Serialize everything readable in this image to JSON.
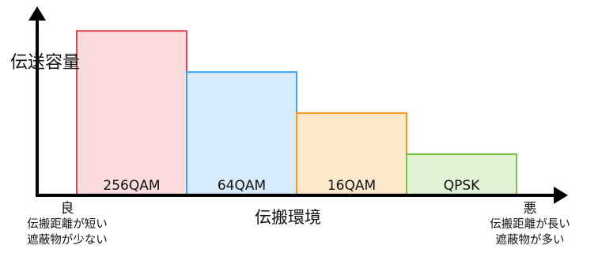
{
  "chart_data": {
    "type": "bar",
    "categories": [
      "256QAM",
      "64QAM",
      "16QAM",
      "QPSK"
    ],
    "values": [
      4,
      3,
      2,
      1
    ],
    "ylim": [
      0,
      4.6
    ],
    "ylabel": "伝送容量",
    "xlabel": "伝搬環境",
    "x_left": {
      "title": "良",
      "lines": [
        "伝搬距離が短い",
        "遮蔽物が少ない"
      ]
    },
    "x_right": {
      "title": "悪",
      "lines": [
        "伝搬距離が長い",
        "遮蔽物が多い"
      ]
    },
    "grid": false,
    "legend": "none",
    "colors": [
      {
        "fill": "#fcdcdc",
        "stroke": "#e8474f"
      },
      {
        "fill": "#d8ebfa",
        "stroke": "#3aa4e8"
      },
      {
        "fill": "#fde8cc",
        "stroke": "#f39a1e"
      },
      {
        "fill": "#e2f2d4",
        "stroke": "#7ac143"
      }
    ]
  }
}
